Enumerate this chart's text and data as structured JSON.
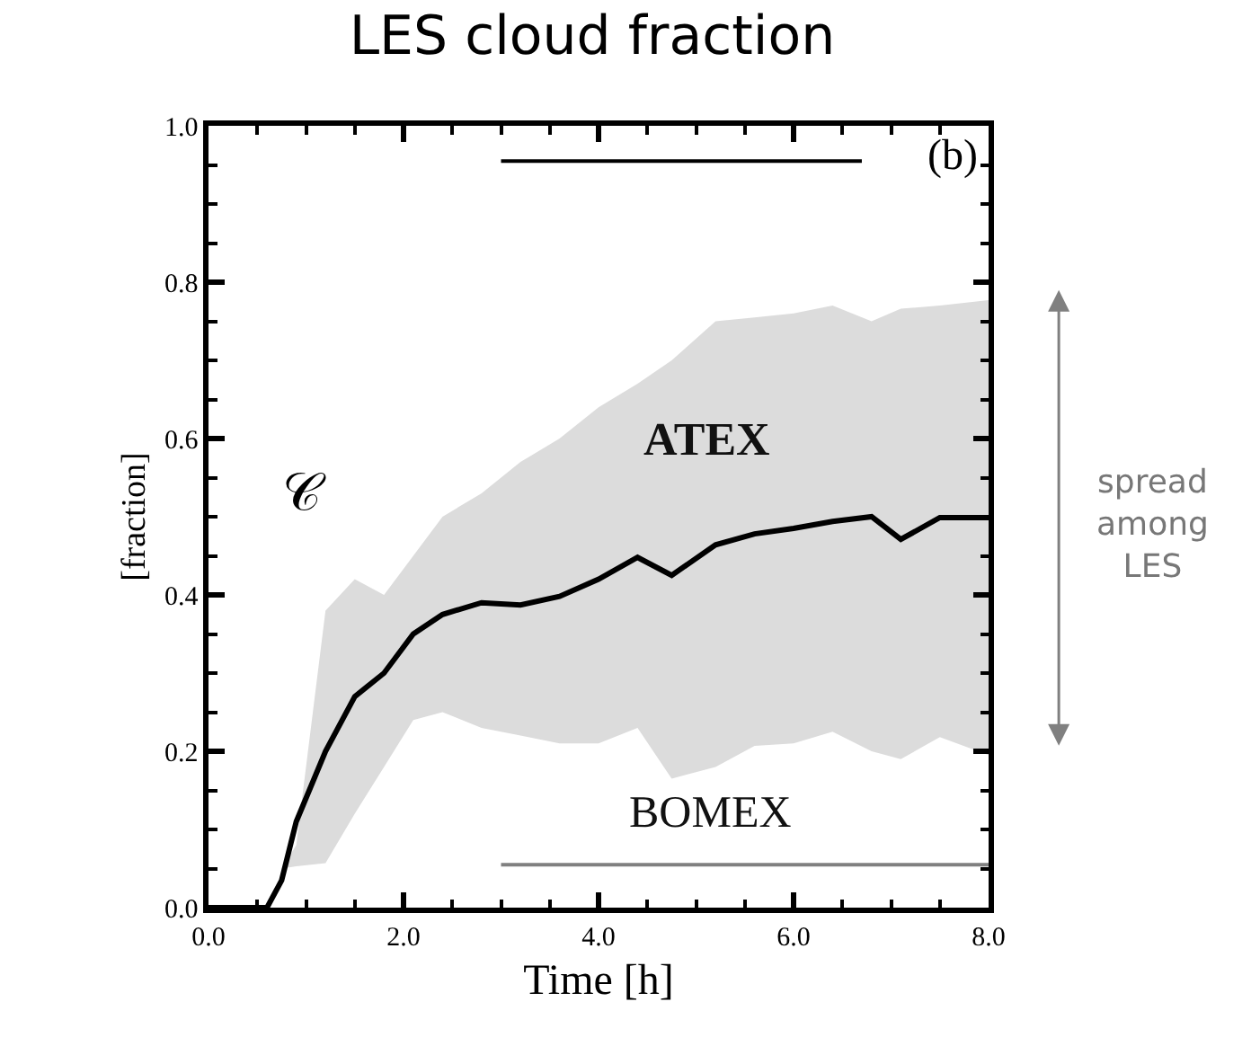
{
  "chart_data": {
    "type": "line",
    "title": "LES cloud fraction",
    "xlabel": "Time [h]",
    "ylabel": "[fraction]",
    "xlim": [
      0,
      8
    ],
    "ylim": [
      0,
      1
    ],
    "xticks": [
      {
        "value": 0,
        "label": "0.0"
      },
      {
        "value": 2,
        "label": "2.0"
      },
      {
        "value": 4,
        "label": "4.0"
      },
      {
        "value": 6,
        "label": "6.0"
      },
      {
        "value": 8,
        "label": "8.0"
      }
    ],
    "yticks": [
      {
        "value": 0,
        "label": "0.0"
      },
      {
        "value": 0.2,
        "label": "0.2"
      },
      {
        "value": 0.4,
        "label": "0.4"
      },
      {
        "value": 0.6,
        "label": "0.6"
      },
      {
        "value": 0.8,
        "label": "0.8"
      },
      {
        "value": 1,
        "label": "1.0"
      }
    ],
    "marker": "none",
    "line_style": "solid",
    "series": [
      {
        "color": "#000000",
        "x": [
          0,
          0.6,
          0.75,
          0.9,
          1.2,
          1.5,
          1.8,
          2.1,
          2.4,
          2.8,
          3.2,
          3.6,
          4.0,
          4.4,
          4.75,
          5.2,
          5.6,
          6.0,
          6.4,
          6.8,
          7.1,
          7.5,
          8.0
        ],
        "values": [
          0,
          0,
          0.035,
          0.11,
          0.2,
          0.27,
          0.3,
          0.35,
          0.375,
          0.39,
          0.387,
          0.398,
          0.42,
          0.448,
          0.425,
          0.464,
          0.478,
          0.485,
          0.494,
          0.5,
          0.471,
          0.499,
          0.499
        ],
        "lower": [
          null,
          null,
          0.05,
          0.053,
          0.057,
          0.12,
          0.18,
          0.24,
          0.25,
          0.23,
          0.22,
          0.21,
          0.21,
          0.23,
          0.165,
          0.18,
          0.207,
          0.21,
          0.225,
          0.2,
          0.19,
          0.218,
          0.195
        ],
        "upper": [
          null,
          null,
          0.05,
          0.08,
          0.38,
          0.42,
          0.4,
          0.45,
          0.5,
          0.53,
          0.57,
          0.6,
          0.64,
          0.67,
          0.7,
          0.75,
          0.755,
          0.76,
          0.77,
          0.75,
          0.766,
          0.77,
          0.777
        ]
      },
      {
        "color": "#000000",
        "x": [
          3,
          6.7
        ],
        "values": [
          0.955,
          0.955
        ]
      },
      {
        "color": "#808080",
        "x": [
          3,
          8
        ],
        "values": [
          0.055,
          0.055
        ]
      }
    ],
    "annotations": [
      "ATEX",
      "BOMEX",
      "(b)",
      "𝒞",
      "spread among LES"
    ]
  }
}
